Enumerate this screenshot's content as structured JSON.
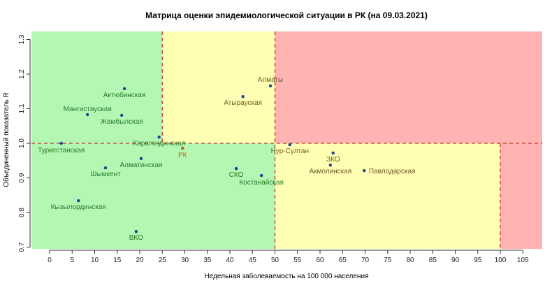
{
  "chart_data": {
    "type": "scatter",
    "title": "Матрица оценки эпидемиологической ситуации в РК (на 09.03.2021)",
    "xlabel": "Недельная заболеваемость на 100 000 населения",
    "ylabel": "Объединенный показатель R",
    "xlim": [
      -4,
      109
    ],
    "ylim": [
      0.7,
      1.3
    ],
    "xticks": [
      0,
      5,
      10,
      15,
      20,
      25,
      30,
      35,
      40,
      45,
      50,
      55,
      60,
      65,
      70,
      75,
      80,
      85,
      90,
      95,
      100,
      105
    ],
    "yticks": [
      "0.7",
      "0.8",
      "0.9",
      "1.0",
      "1.1",
      "1.2",
      "1.3"
    ],
    "thresholds": {
      "x": [
        25,
        50,
        100
      ],
      "y": 1.0
    },
    "colors": {
      "green": "#b3f7b3",
      "yellow": "#ffffb3",
      "red": "#ffb3b3",
      "line": "#c0392b",
      "point": "#1f3f8f",
      "label_green": "#2b7a2b",
      "label_yellow": "#6e5d27",
      "label_rk": "#b8651b"
    },
    "points": [
      {
        "name": "Актюбинская",
        "x": 16.6,
        "y": 1.158,
        "zone": "green"
      },
      {
        "name": "Мангистауская",
        "x": 8.4,
        "y": 1.083,
        "zone": "green"
      },
      {
        "name": "Жамбылская",
        "x": 16.0,
        "y": 1.081,
        "zone": "green"
      },
      {
        "name": "Карагандинская",
        "x": 24.3,
        "y": 1.018,
        "zone": "green"
      },
      {
        "name": "Туркестанская",
        "x": 2.6,
        "y": 1.0,
        "zone": "green"
      },
      {
        "name": "РК",
        "x": 29.5,
        "y": 0.986,
        "zone": "rk"
      },
      {
        "name": "Алматинская",
        "x": 20.3,
        "y": 0.956,
        "zone": "green"
      },
      {
        "name": "Шымкент",
        "x": 12.4,
        "y": 0.929,
        "zone": "green"
      },
      {
        "name": "Кызылординская",
        "x": 6.4,
        "y": 0.834,
        "zone": "green"
      },
      {
        "name": "ВКО",
        "x": 19.2,
        "y": 0.745,
        "zone": "green"
      },
      {
        "name": "Алматы",
        "x": 49.0,
        "y": 1.166,
        "zone": "yellow"
      },
      {
        "name": "Атырауская",
        "x": 42.9,
        "y": 1.135,
        "zone": "yellow"
      },
      {
        "name": "Нур-Султан",
        "x": 53.3,
        "y": 0.996,
        "zone": "yellow"
      },
      {
        "name": "ЗКО",
        "x": 62.9,
        "y": 0.972,
        "zone": "yellow"
      },
      {
        "name": "Акмолинская",
        "x": 62.3,
        "y": 0.937,
        "zone": "yellow"
      },
      {
        "name": "Павлодарская",
        "x": 69.8,
        "y": 0.921,
        "zone": "yellow"
      },
      {
        "name": "СКО",
        "x": 41.4,
        "y": 0.927,
        "zone": "green"
      },
      {
        "name": "Костанайская",
        "x": 47.0,
        "y": 0.907,
        "zone": "green"
      }
    ]
  }
}
